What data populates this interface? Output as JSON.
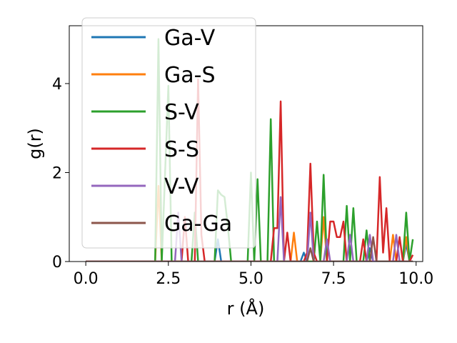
{
  "chart_data": {
    "type": "line",
    "title": "",
    "xlabel": "r (Å)",
    "ylabel": "g(r)",
    "xlim": [
      -0.5,
      10.2
    ],
    "ylim": [
      0,
      5.3
    ],
    "xticks": [
      0.0,
      2.5,
      5.0,
      7.5,
      10.0
    ],
    "xtick_labels": [
      "0.0",
      "2.5",
      "5.0",
      "7.5",
      "10.0"
    ],
    "yticks": [
      0,
      2,
      4
    ],
    "ytick_labels": [
      "0",
      "2",
      "4"
    ],
    "grid": false,
    "legend_position": "top-left",
    "series": [
      {
        "name": "Ga-V",
        "color": "#1f77b4",
        "points": [
          [
            0,
            0
          ],
          [
            3.9,
            0
          ],
          [
            4.0,
            0.5
          ],
          [
            4.1,
            0
          ],
          [
            6.5,
            0
          ],
          [
            6.6,
            0.2
          ],
          [
            6.7,
            0
          ],
          [
            8.5,
            0
          ],
          [
            8.6,
            0.3
          ],
          [
            8.7,
            0
          ],
          [
            9.6,
            0
          ],
          [
            9.7,
            0.4
          ],
          [
            9.8,
            0
          ],
          [
            9.9,
            0
          ]
        ]
      },
      {
        "name": "Ga-S",
        "color": "#ff7f0e",
        "points": [
          [
            0,
            0
          ],
          [
            2.1,
            0
          ],
          [
            2.2,
            1.7
          ],
          [
            2.3,
            0
          ],
          [
            6.2,
            0
          ],
          [
            6.3,
            0.65
          ],
          [
            6.4,
            0
          ],
          [
            7.1,
            0
          ],
          [
            7.2,
            1.0
          ],
          [
            7.3,
            0
          ],
          [
            9.2,
            0
          ],
          [
            9.3,
            0.6
          ],
          [
            9.4,
            0
          ],
          [
            9.6,
            0
          ],
          [
            9.7,
            0.55
          ],
          [
            9.8,
            0
          ],
          [
            9.9,
            0
          ]
        ]
      },
      {
        "name": "S-V",
        "color": "#2ca02c",
        "points": [
          [
            0,
            0
          ],
          [
            2.1,
            0
          ],
          [
            2.2,
            5.0
          ],
          [
            2.3,
            0
          ],
          [
            2.5,
            3.95
          ],
          [
            2.6,
            0
          ],
          [
            3.2,
            0
          ],
          [
            3.3,
            1.1
          ],
          [
            3.4,
            0
          ],
          [
            3.9,
            0
          ],
          [
            4.0,
            1.6
          ],
          [
            4.1,
            1.5
          ],
          [
            4.2,
            1.45
          ],
          [
            4.3,
            0.8
          ],
          [
            4.4,
            0
          ],
          [
            4.9,
            0
          ],
          [
            5.0,
            2.0
          ],
          [
            5.1,
            0
          ],
          [
            5.2,
            1.85
          ],
          [
            5.3,
            0
          ],
          [
            5.5,
            0
          ],
          [
            5.6,
            3.2
          ],
          [
            5.7,
            0
          ],
          [
            6.9,
            0
          ],
          [
            7.0,
            0.9
          ],
          [
            7.1,
            0
          ],
          [
            7.2,
            1.95
          ],
          [
            7.3,
            0
          ],
          [
            7.8,
            0
          ],
          [
            7.9,
            1.25
          ],
          [
            8.0,
            0
          ],
          [
            8.1,
            1.2
          ],
          [
            8.2,
            0
          ],
          [
            8.4,
            0
          ],
          [
            8.5,
            0.7
          ],
          [
            8.6,
            0
          ],
          [
            9.6,
            0
          ],
          [
            9.7,
            1.1
          ],
          [
            9.8,
            0
          ],
          [
            9.9,
            0.5
          ]
        ]
      },
      {
        "name": "S-S",
        "color": "#d62728",
        "points": [
          [
            0,
            0
          ],
          [
            2.9,
            0
          ],
          [
            3.0,
            1.0
          ],
          [
            3.1,
            0
          ],
          [
            3.3,
            0
          ],
          [
            3.4,
            4.1
          ],
          [
            3.5,
            0.6
          ],
          [
            3.6,
            0
          ],
          [
            5.6,
            0
          ],
          [
            5.7,
            0.75
          ],
          [
            5.8,
            0.75
          ],
          [
            5.9,
            3.6
          ],
          [
            6.0,
            0
          ],
          [
            6.1,
            0.65
          ],
          [
            6.2,
            0
          ],
          [
            6.6,
            0
          ],
          [
            6.7,
            0.2
          ],
          [
            6.8,
            2.2
          ],
          [
            6.9,
            0.2
          ],
          [
            7.0,
            0
          ],
          [
            7.3,
            0
          ],
          [
            7.4,
            0.9
          ],
          [
            7.5,
            0.9
          ],
          [
            7.6,
            0.55
          ],
          [
            7.7,
            0.55
          ],
          [
            7.8,
            0.9
          ],
          [
            7.9,
            0
          ],
          [
            8.3,
            0
          ],
          [
            8.4,
            0.5
          ],
          [
            8.5,
            0
          ],
          [
            8.8,
            0
          ],
          [
            8.9,
            1.9
          ],
          [
            9.0,
            0.2
          ],
          [
            9.1,
            1.2
          ],
          [
            9.2,
            0
          ],
          [
            9.4,
            0
          ],
          [
            9.5,
            0.55
          ],
          [
            9.6,
            0
          ],
          [
            9.8,
            0
          ],
          [
            9.9,
            0.15
          ]
        ]
      },
      {
        "name": "V-V",
        "color": "#9467bd",
        "points": [
          [
            0,
            0
          ],
          [
            2.7,
            0
          ],
          [
            2.8,
            1.1
          ],
          [
            2.9,
            0
          ],
          [
            5.8,
            0
          ],
          [
            5.9,
            1.45
          ],
          [
            6.0,
            0
          ],
          [
            6.7,
            0
          ],
          [
            6.8,
            1.1
          ],
          [
            6.9,
            0
          ],
          [
            7.2,
            0
          ],
          [
            7.3,
            0.5
          ],
          [
            7.4,
            0
          ],
          [
            7.9,
            0
          ],
          [
            8.0,
            0.6
          ],
          [
            8.1,
            0
          ],
          [
            8.5,
            0
          ],
          [
            8.6,
            0.6
          ],
          [
            8.7,
            0
          ],
          [
            9.3,
            0
          ],
          [
            9.4,
            0.6
          ],
          [
            9.5,
            0
          ],
          [
            9.9,
            0
          ]
        ]
      },
      {
        "name": "Ga-Ga",
        "color": "#8c564b",
        "points": [
          [
            0,
            0
          ],
          [
            6.7,
            0
          ],
          [
            6.8,
            0.3
          ],
          [
            6.9,
            0
          ],
          [
            8.6,
            0
          ],
          [
            8.7,
            0.55
          ],
          [
            8.8,
            0
          ],
          [
            9.9,
            0
          ]
        ]
      }
    ]
  }
}
